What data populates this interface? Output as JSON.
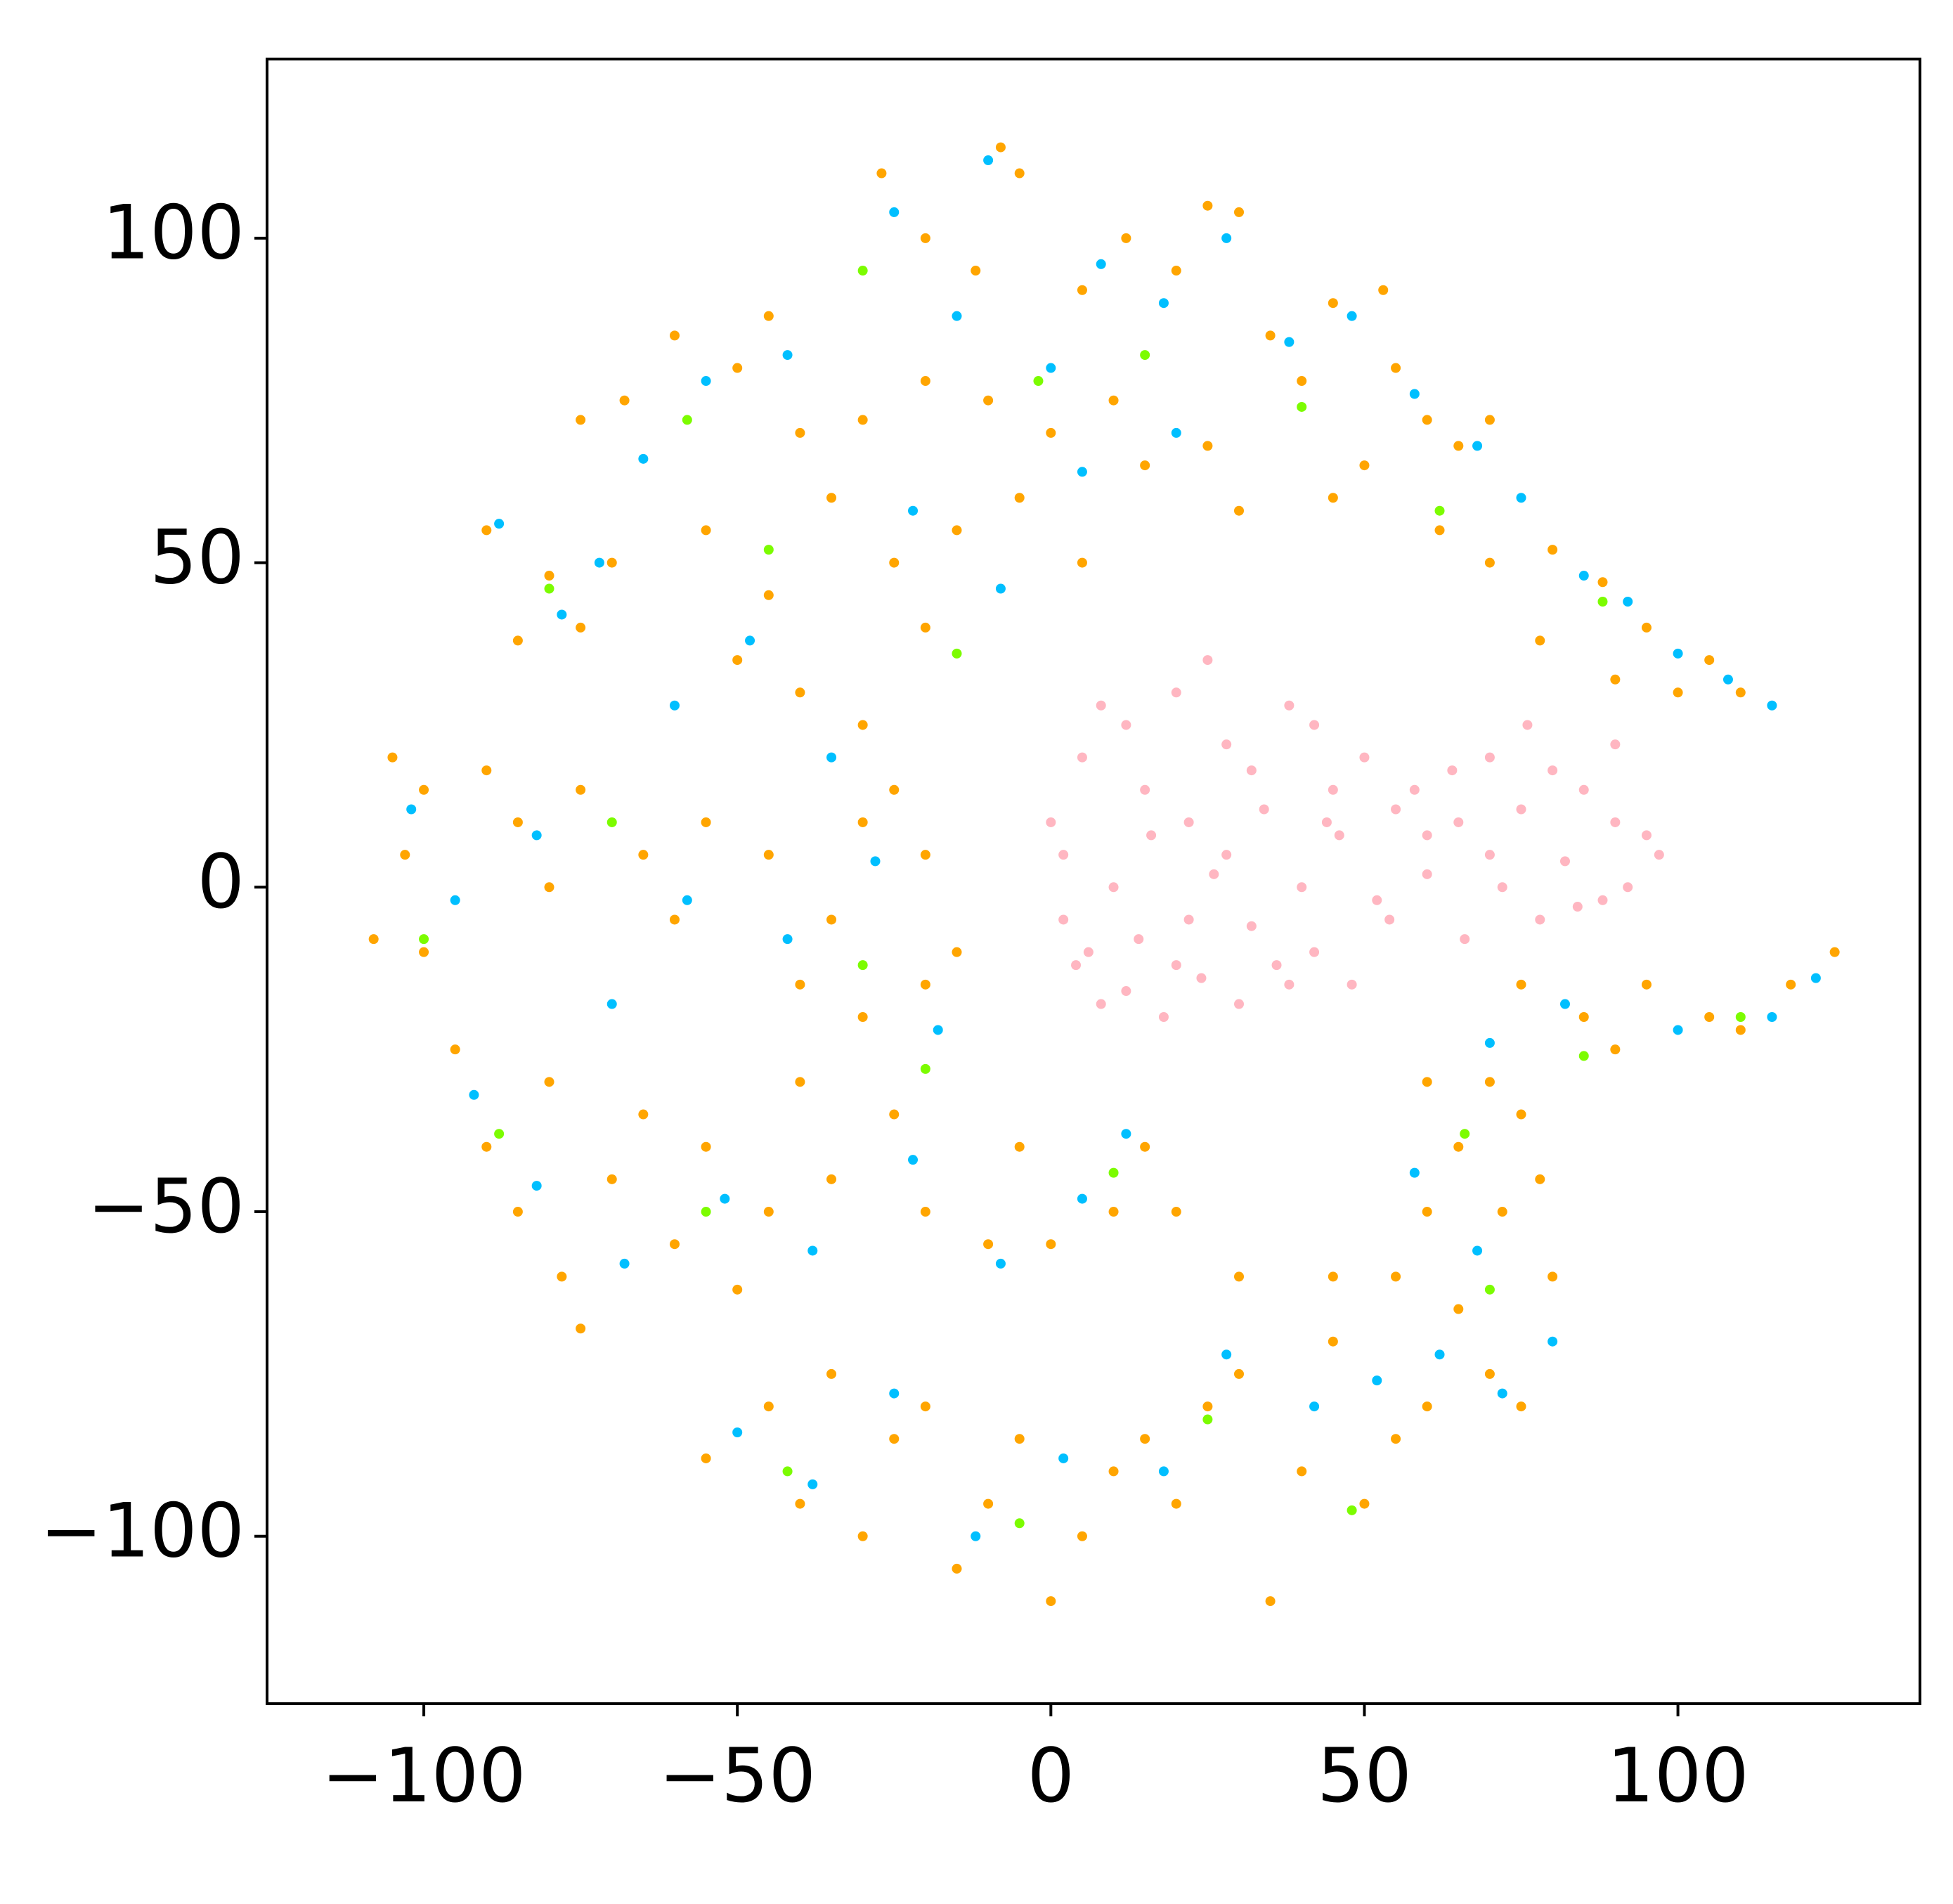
{
  "chart_data": {
    "type": "scatter",
    "xlim": [
      -125,
      138.6
    ],
    "ylim": [
      -125.8,
      127.6
    ],
    "xticks": [
      {
        "value": -100,
        "label": "−100"
      },
      {
        "value": -50,
        "label": "−50"
      },
      0,
      50,
      100
    ],
    "yticks": [
      {
        "value": -100,
        "label": "−100"
      },
      {
        "value": -50,
        "label": "−50"
      },
      0,
      50,
      100
    ],
    "series": [
      {
        "color": "#00bfff",
        "x": [
          -25,
          -10,
          -15,
          0,
          8,
          18,
          28,
          38,
          48,
          58,
          68,
          75,
          85,
          92,
          100,
          108,
          115,
          -42,
          -55,
          -65,
          -72,
          -88,
          -78,
          -60,
          -48,
          -35,
          -22,
          -8,
          5,
          20,
          -102,
          -95,
          -82,
          -70,
          -58,
          -42,
          -28,
          -18,
          -92,
          -82,
          -68,
          -52,
          -38,
          -22,
          -8,
          5,
          12,
          -50,
          -38,
          -25,
          -12,
          2,
          18,
          28,
          42,
          52,
          62,
          72,
          80,
          68,
          58,
          70,
          82,
          100,
          115,
          122
        ],
        "y": [
          104,
          112,
          88,
          80,
          96,
          90,
          100,
          84,
          88,
          76,
          68,
          60,
          48,
          44,
          36,
          32,
          28,
          82,
          78,
          66,
          50,
          56,
          42,
          28,
          38,
          20,
          58,
          46,
          64,
          70,
          12,
          -2,
          8,
          -18,
          -2,
          -8,
          4,
          -22,
          -32,
          -46,
          -58,
          -48,
          -56,
          -42,
          -58,
          -48,
          -38,
          -84,
          -92,
          -78,
          -100,
          -88,
          -90,
          -72,
          -80,
          -76,
          -72,
          -78,
          -70,
          -56,
          -44,
          -24,
          -18,
          -22,
          -20,
          -14
        ]
      },
      {
        "color": "#7cfc00",
        "x": [
          -30,
          -2,
          15,
          40,
          62,
          88,
          -58,
          -80,
          -45,
          -15,
          -100,
          -70,
          -30,
          -88,
          -55,
          -20,
          10,
          -42,
          -5,
          25,
          48,
          70,
          85,
          110,
          66
        ],
        "y": [
          95,
          78,
          82,
          74,
          58,
          44,
          72,
          46,
          52,
          36,
          -8,
          10,
          -12,
          -38,
          -50,
          -28,
          -44,
          -90,
          -98,
          -82,
          -96,
          -62,
          -26,
          -20,
          -38
        ]
      },
      {
        "color": "#ffa500",
        "x": [
          -27,
          -8,
          -5,
          -20,
          -12,
          5,
          12,
          25,
          30,
          20,
          35,
          45,
          53,
          40,
          55,
          60,
          65,
          70,
          50,
          45,
          62,
          70,
          80,
          88,
          95,
          105,
          110,
          78,
          90,
          100,
          -45,
          -50,
          -60,
          -68,
          -75,
          -40,
          -30,
          -20,
          -10,
          0,
          10,
          15,
          25,
          30,
          -90,
          -80,
          -70,
          -75,
          -85,
          -55,
          -45,
          -50,
          -40,
          -30,
          -20,
          -15,
          -35,
          -5,
          5,
          -25,
          -105,
          -100,
          -103,
          -108,
          -100,
          -90,
          -85,
          -80,
          -75,
          -65,
          -60,
          -55,
          -45,
          -35,
          -30,
          -25,
          -20,
          -40,
          -30,
          -20,
          -15,
          -95,
          -90,
          -85,
          -80,
          -78,
          -75,
          -70,
          -65,
          -60,
          -55,
          -50,
          -45,
          -40,
          -35,
          -25,
          -20,
          -10,
          0,
          10,
          20,
          15,
          -5,
          -55,
          -45,
          -40,
          -35,
          -30,
          -25,
          -20,
          -15,
          -10,
          -5,
          0,
          5,
          10,
          15,
          20,
          25,
          30,
          35,
          40,
          45,
          50,
          55,
          60,
          70,
          75,
          30,
          45,
          55,
          60,
          65,
          70,
          75,
          72,
          78,
          80,
          65,
          75,
          85,
          95,
          105,
          110,
          118,
          125,
          90,
          60
        ],
        "y": [
          110,
          114,
          110,
          100,
          95,
          92,
          100,
          105,
          104,
          95,
          85,
          90,
          92,
          78,
          80,
          72,
          68,
          72,
          65,
          60,
          55,
          50,
          52,
          47,
          40,
          35,
          30,
          38,
          32,
          30,
          88,
          80,
          85,
          75,
          72,
          70,
          72,
          78,
          75,
          70,
          75,
          65,
          68,
          58,
          55,
          48,
          50,
          40,
          38,
          55,
          45,
          35,
          30,
          25,
          40,
          55,
          60,
          60,
          50,
          50,
          20,
          15,
          5,
          -8,
          -10,
          18,
          10,
          0,
          15,
          5,
          -5,
          10,
          5,
          -5,
          10,
          15,
          5,
          -15,
          -20,
          -15,
          -10,
          -25,
          -40,
          -50,
          -30,
          -60,
          -68,
          -45,
          -35,
          -55,
          -40,
          -62,
          -50,
          -30,
          -45,
          -35,
          -50,
          -55,
          -55,
          -50,
          -50,
          -40,
          -40,
          -88,
          -80,
          -95,
          -75,
          -100,
          -85,
          -80,
          -105,
          -95,
          -85,
          -110,
          -100,
          -90,
          -85,
          -95,
          -80,
          -75,
          -110,
          -90,
          -70,
          -95,
          -85,
          -80,
          -75,
          -80,
          -60,
          -60,
          -60,
          -50,
          -40,
          -30,
          -35,
          -50,
          -45,
          -60,
          -65,
          -15,
          -20,
          -15,
          -20,
          -22,
          -15,
          -10,
          -25,
          -30
        ]
      },
      {
        "color": "#ffb6c1",
        "x": [
          2,
          5,
          8,
          12,
          15,
          20,
          25,
          22,
          28,
          32,
          38,
          42,
          45,
          50,
          55,
          60,
          65,
          70,
          75,
          80,
          85,
          90,
          95,
          97,
          92,
          88,
          82,
          78,
          72,
          66,
          60,
          54,
          48,
          42,
          36,
          30,
          24,
          18,
          12,
          6,
          2,
          0,
          4,
          10,
          16,
          22,
          28,
          34,
          40,
          46,
          52,
          58,
          64,
          70,
          76,
          84,
          90,
          8,
          14,
          20,
          26,
          32,
          38,
          44
        ],
        "y": [
          5,
          20,
          28,
          25,
          15,
          30,
          35,
          10,
          22,
          18,
          28,
          25,
          15,
          20,
          12,
          8,
          10,
          5,
          12,
          18,
          15,
          22,
          8,
          5,
          0,
          -2,
          4,
          -5,
          0,
          -8,
          2,
          -5,
          -15,
          -10,
          -12,
          -18,
          -14,
          -20,
          -16,
          -10,
          -5,
          10,
          -12,
          0,
          8,
          -5,
          5,
          12,
          0,
          8,
          -2,
          15,
          18,
          20,
          25,
          -3,
          10,
          -18,
          -8,
          -12,
          2,
          -6,
          -15,
          10
        ]
      }
    ]
  }
}
